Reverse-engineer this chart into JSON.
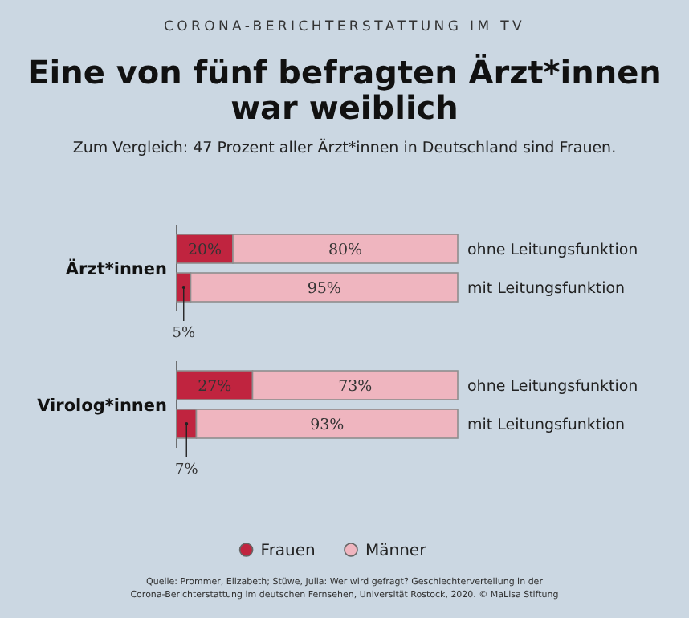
{
  "chart_data": {
    "type": "bar",
    "orientation": "horizontal",
    "stacked": true,
    "title": "Eine von fünf befragten Ärzt*innen war weiblich",
    "subtitle": "Zum Vergleich: 47 Prozent aller Ärzt*innen in Deutschland sind Frauen.",
    "categories": [
      "ohne Leitungsfunktion",
      "mit Leitungsfunktion",
      "ohne Leitungsfunktion",
      "mit Leitungsfunktion"
    ],
    "series": [
      {
        "name": "Frauen",
        "color": "#c0243f",
        "values": [
          20,
          5,
          27,
          7
        ],
        "value_labels": [
          "20%",
          "5%",
          "27%",
          "7%"
        ]
      },
      {
        "name": "Männer",
        "color": "#efb5bf",
        "values": [
          80,
          95,
          73,
          93
        ],
        "value_labels": [
          "80%",
          "95%",
          "73%",
          "93%"
        ]
      }
    ],
    "legend": "bottom",
    "marker": "circle",
    "annotations": [
      "CORONA-BERICHTERSTATTUNG IM TV",
      "Ärzt*innen",
      "Virolog*innen",
      "Quelle: Prommer, Elizabeth; Stüwe, Julia: Wer wird gefragt? Geschlechterverteilung in der Corona-Berichterstattung im deutschen Fernsehen, Universität Rostock, 2020. © MaLisa Stiftung"
    ]
  }
}
